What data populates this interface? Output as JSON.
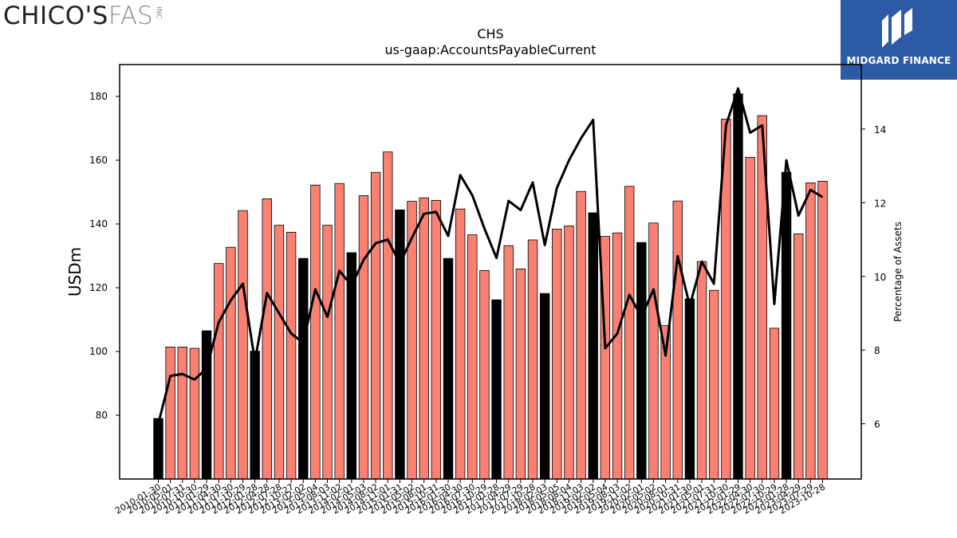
{
  "branding": {
    "company_name": "CHICO'S",
    "company_suffix": "FAS",
    "company_inc": "INC",
    "publisher_name": "MIDGARD FINANCE",
    "publisher_icon": "midgard-m-icon"
  },
  "chart_data": {
    "type": "bar",
    "title": "CHS",
    "subtitle": "us-gaap:AccountsPayableCurrent",
    "ylabel": "USDm",
    "y2label": "Percentage of Assets",
    "ylim": [
      60,
      190
    ],
    "y2lim": [
      4.5,
      15.75
    ],
    "yticks": [
      80,
      100,
      120,
      140,
      160,
      180
    ],
    "y2ticks": [
      6,
      8,
      10,
      12,
      14
    ],
    "grid": false,
    "colors": {
      "annual_bar": "#000000",
      "quarterly_bar": "#fa8072",
      "line": "#000000"
    },
    "tick_labels": [
      "2010-01-30",
      "2010-05-01",
      "2010-07-31",
      "2010-10-30",
      "2011-01-29",
      "2011-04-30",
      "2011-07-30",
      "2011-10-29",
      "2012-01-28",
      "2012-04-28",
      "2012-07-28",
      "2012-10-27",
      "2013-02-02",
      "2013-05-04",
      "2013-08-03",
      "2013-11-02",
      "2014-02-01",
      "2014-05-03",
      "2014-08-02",
      "2014-11-01",
      "2015-01-31",
      "2015-05-02",
      "2015-08-01",
      "2015-10-31",
      "2016-01-30",
      "2016-04-30",
      "2016-07-30",
      "2016-10-29",
      "2017-01-28",
      "2017-04-29",
      "2017-07-29",
      "2017-10-28",
      "2018-02-03",
      "2018-05-05",
      "2018-08-04",
      "2018-11-03",
      "2019-02-02",
      "2019-05-04",
      "2019-08-03",
      "2019-11-02",
      "2020-02-01",
      "2020-05-02",
      "2020-08-01",
      "2020-10-31",
      "2021-01-30",
      "2021-05-01",
      "2021-07-31",
      "2021-10-30",
      "2022-01-29",
      "2022-04-30",
      "2022-07-30",
      "2022-10-29",
      "2023-01-28",
      "2023-04-29",
      "2023-07-29",
      "2023-10-28"
    ],
    "values": [
      79,
      101.4,
      101.4,
      101,
      106.5,
      127.6,
      132.7,
      144.2,
      100.1,
      147.9,
      139.6,
      137.4,
      129.2,
      152.2,
      139.6,
      152.7,
      131,
      148.9,
      156.2,
      162.6,
      144.4,
      147.1,
      148.2,
      147.4,
      129.2,
      144.7,
      136.6,
      125.4,
      116.2,
      133.2,
      125.9,
      135,
      118.2,
      138.4,
      139.4,
      150.2,
      143.5,
      136.1,
      137.2,
      151.8,
      134.2,
      140.3,
      108.1,
      147.2,
      116.5,
      128.2,
      119.2,
      172.9,
      180.8,
      160.9,
      174,
      107.3,
      156.2,
      136.9,
      152.9,
      153.4
    ],
    "annual": [
      true,
      false,
      false,
      false,
      true,
      false,
      false,
      false,
      true,
      false,
      false,
      false,
      true,
      false,
      false,
      false,
      true,
      false,
      false,
      false,
      true,
      false,
      false,
      false,
      true,
      false,
      false,
      false,
      true,
      false,
      false,
      false,
      true,
      false,
      false,
      false,
      true,
      false,
      false,
      false,
      true,
      false,
      false,
      false,
      true,
      false,
      false,
      false,
      true,
      false,
      false,
      false,
      true,
      false,
      false,
      false
    ],
    "pct_of_assets": [
      6,
      7.3,
      7.35,
      7.2,
      7.5,
      8.75,
      9.35,
      9.8,
      7.7,
      9.55,
      9,
      8.45,
      8.2,
      9.65,
      8.9,
      10.15,
      9.75,
      10.45,
      10.9,
      11,
      10.35,
      11.05,
      11.7,
      11.75,
      11.1,
      12.75,
      12.2,
      11.3,
      10.5,
      12.05,
      11.8,
      12.55,
      10.85,
      12.4,
      13.15,
      13.75,
      14.25,
      8.05,
      8.45,
      9.5,
      8.9,
      9.65,
      7.85,
      10.55,
      9.2,
      10.4,
      9.8,
      14.1,
      15.1,
      13.9,
      14.1,
      9.25,
      13.15,
      11.65,
      12.35,
      12.15
    ]
  }
}
